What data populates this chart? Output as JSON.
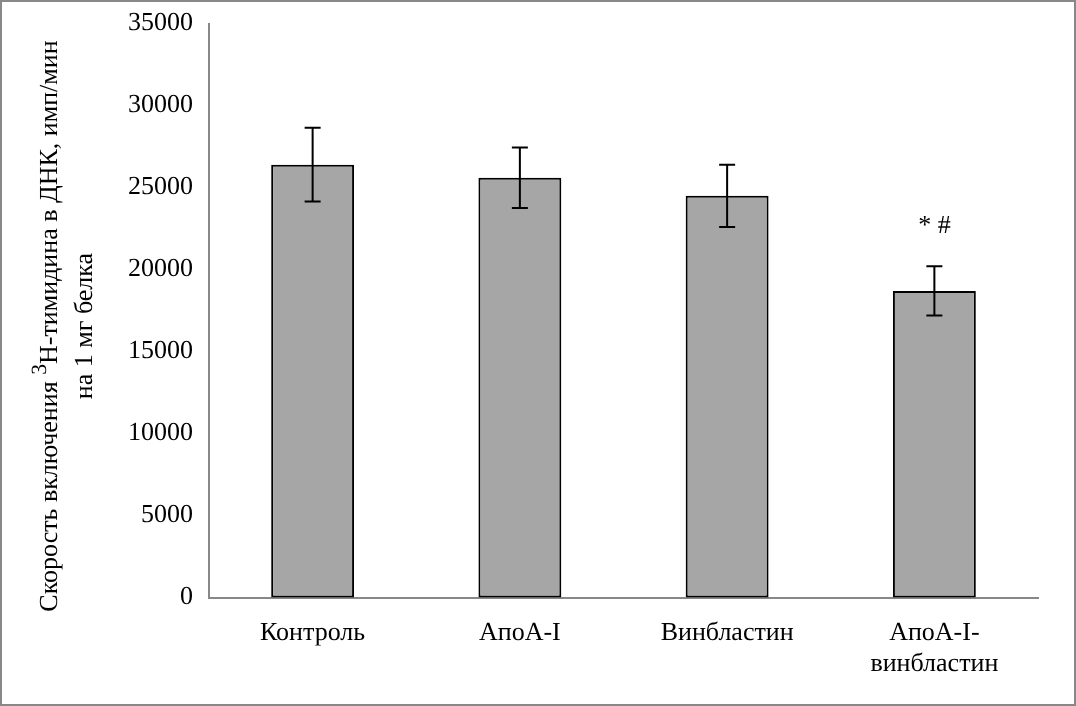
{
  "chart_data": {
    "type": "bar",
    "ylabel": "Скорость включения $^{3}$H-тимидина  в ДНК, имп/мин на 1 мг белка",
    "categories": [
      "Контроль",
      "АпоА-I",
      "Винбластин",
      "АпоА-I-винбластин"
    ],
    "values": [
      26400,
      25600,
      24500,
      18700
    ],
    "errors": [
      2250,
      1850,
      1900,
      1500
    ],
    "color": "#a6a6a6",
    "ylim": [
      0,
      35000
    ],
    "yticks": [
      0,
      5000,
      10000,
      15000,
      20000,
      25000,
      30000,
      35000
    ],
    "grid": false,
    "legend": false,
    "annotations": [
      "* #"
    ]
  }
}
